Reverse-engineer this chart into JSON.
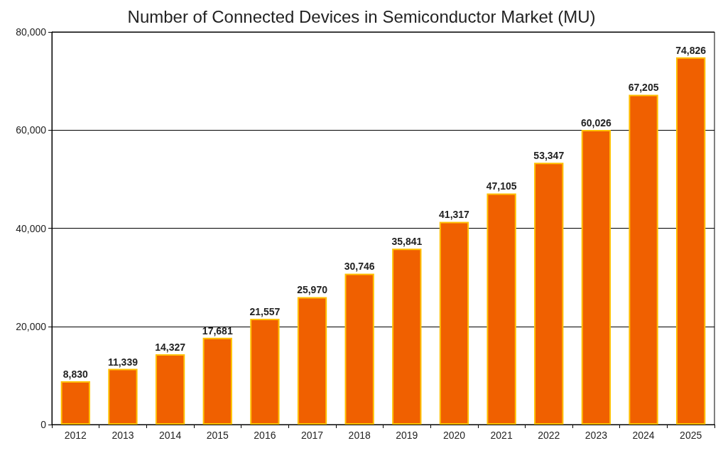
{
  "chart_data": {
    "type": "bar",
    "title": "Number of Connected Devices in Semiconductor Market (MU)",
    "categories": [
      "2012",
      "2013",
      "2014",
      "2015",
      "2016",
      "2017",
      "2018",
      "2019",
      "2020",
      "2021",
      "2022",
      "2023",
      "2024",
      "2025"
    ],
    "values": [
      8830,
      11339,
      14327,
      17681,
      21557,
      25970,
      30746,
      35841,
      41317,
      47105,
      53347,
      60026,
      67205,
      74826
    ],
    "color": "#f06000",
    "value_labels": [
      "8,830",
      "11,339",
      "14,327",
      "17,681",
      "21,557",
      "25,970",
      "30,746",
      "35,841",
      "41,317",
      "47,105",
      "53,347",
      "60,026",
      "67,205",
      "74,826"
    ],
    "ylim": [
      0,
      80000
    ],
    "yticks": [
      0,
      {
        "value": 20000,
        "label": "20,000"
      },
      {
        "value": 40000,
        "label": "40,000"
      },
      {
        "value": 60000,
        "label": "60,000"
      },
      {
        "value": 80000,
        "label": "80,000"
      }
    ],
    "grid": "y"
  }
}
